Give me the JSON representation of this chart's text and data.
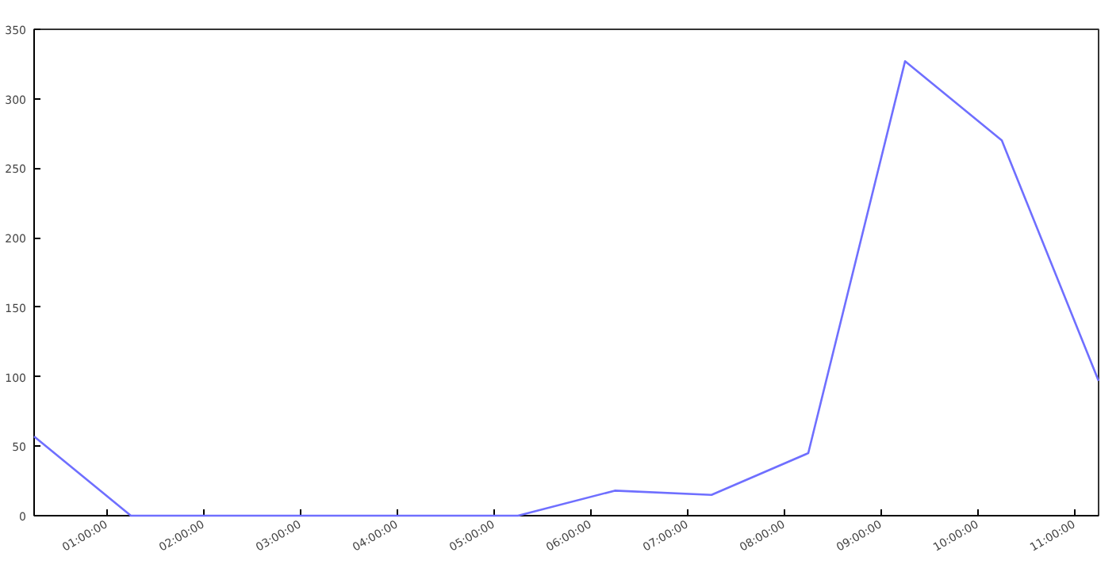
{
  "chart_data": {
    "type": "line",
    "x": [
      0.25,
      1.25,
      2.25,
      3.25,
      4.25,
      5.25,
      6.25,
      7.25,
      8.25,
      9.25,
      10.25,
      11.25
    ],
    "series": [
      {
        "color": "#6f6fff",
        "values": [
          57,
          0,
          0,
          0,
          0,
          0,
          18,
          15,
          45,
          327,
          270,
          97
        ]
      }
    ],
    "xlim": [
      0.25,
      11.25
    ],
    "ylim": [
      0,
      350
    ],
    "xticks": [
      {
        "value": 1,
        "label": "01:00:00"
      },
      {
        "value": 2,
        "label": "02:00:00"
      },
      {
        "value": 3,
        "label": "03:00:00"
      },
      {
        "value": 4,
        "label": "04:00:00"
      },
      {
        "value": 5,
        "label": "05:00:00"
      },
      {
        "value": 6,
        "label": "06:00:00"
      },
      {
        "value": 7,
        "label": "07:00:00"
      },
      {
        "value": 8,
        "label": "08:00:00"
      },
      {
        "value": 9,
        "label": "09:00:00"
      },
      {
        "value": 10,
        "label": "10:00:00"
      },
      {
        "value": 11,
        "label": "11:00:00"
      }
    ],
    "yticks": [
      0,
      50,
      100,
      150,
      200,
      250,
      300,
      350
    ],
    "grid": false,
    "marker": "none",
    "line_style": "solid"
  }
}
